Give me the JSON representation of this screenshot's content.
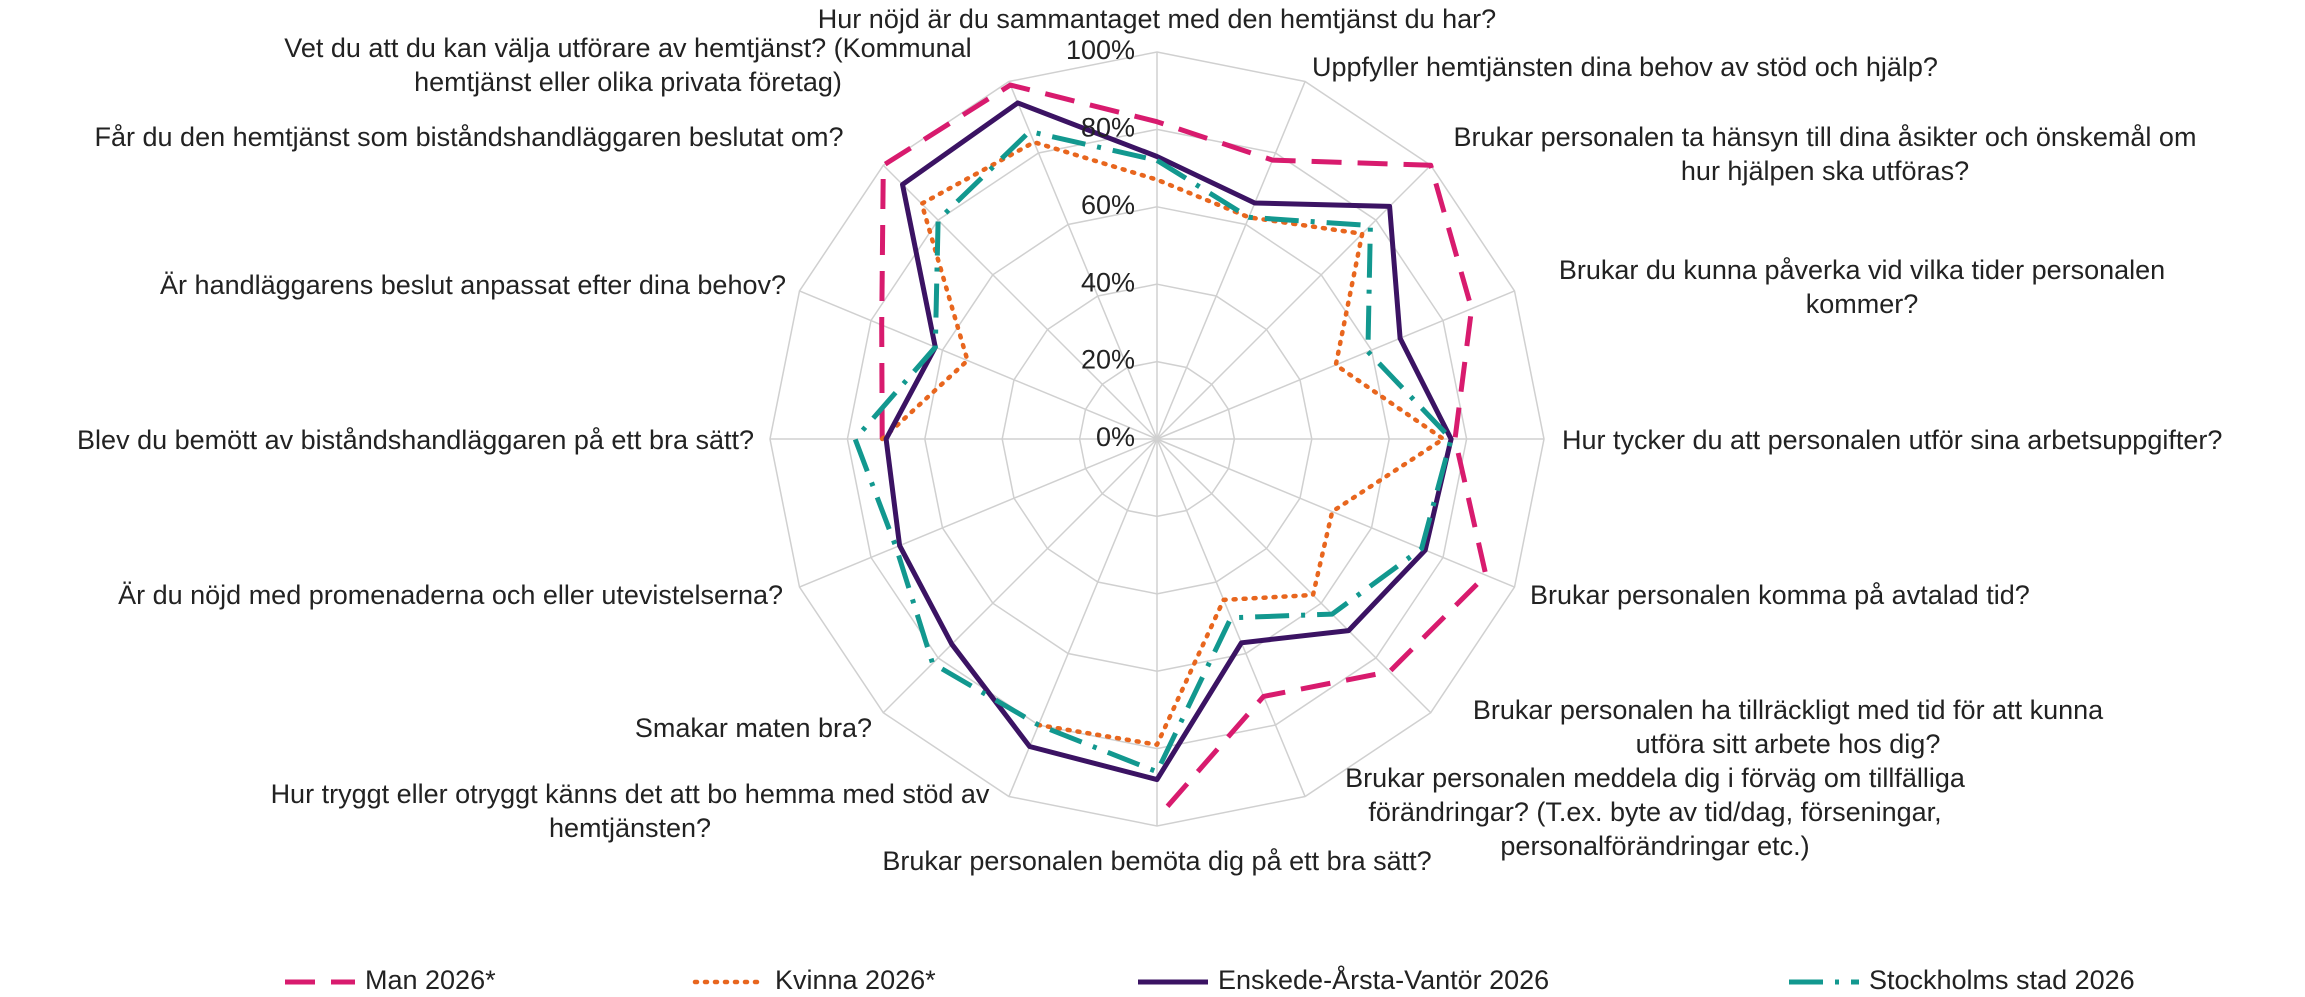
{
  "chart_data": {
    "type": "radar",
    "categories": [
      "Hur nöjd är du sammantaget med den hemtjänst du har?",
      "Uppfyller hemtjänsten dina behov av stöd och hjälp?",
      "Brukar personalen ta hänsyn till dina åsikter och önskemål om hur hjälpen ska utföras?",
      "Brukar du kunna påverka vid vilka tider personalen kommer?",
      "Hur tycker du att personalen utför sina  arbetsuppgifter?",
      "Brukar personalen komma på avtalad tid?",
      "Brukar personalen ha tillräckligt med tid för att kunna utföra sitt arbete hos dig?",
      "Brukar personalen meddela dig i förväg om tillfälliga förändringar? (T.ex. byte av tid/dag, förseningar, personalförändringar etc.)",
      "Brukar personalen bemöta dig på ett bra sätt?",
      "Hur tryggt eller otryggt känns det att bo hemma med stöd av hemtjänsten?",
      "Smakar maten bra?",
      "Är du nöjd med promenaderna och eller utevistelserna?",
      "Blev du bemött av biståndshandläggaren på ett bra sätt?",
      "Är handläggarens beslut anpassat efter dina behov?",
      "Får du den hemtjänst som biståndshandläggaren beslutat om?",
      "Vet du att du kan välja utförare av hemtjänst? (Kommunal hemtjänst eller olika privata företag)"
    ],
    "series": [
      {
        "name": "Man 2026*",
        "color": "#d81b6e",
        "values": [
          82,
          78,
          100,
          88,
          77,
          92,
          85,
          72,
          98,
          null,
          null,
          null,
          71,
          77,
          100,
          99
        ]
      },
      {
        "name": "Kvinna 2026*",
        "color": "#e8661e",
        "values": [
          67,
          62,
          75,
          50,
          74,
          49,
          57,
          45,
          79,
          80,
          null,
          null,
          71,
          53,
          86,
          83
        ]
      },
      {
        "name": "Enskede-Årsta-Vantör 2026",
        "color": "#3b1363",
        "values": [
          73,
          66,
          85,
          68,
          76,
          75,
          70,
          57,
          88,
          86,
          75,
          72,
          70,
          62,
          93,
          94
        ]
      },
      {
        "name": "Stockholms stad 2026",
        "color": "#12988f",
        "values": [
          72,
          62,
          78,
          59,
          76,
          74,
          64,
          50,
          86,
          80,
          82,
          73,
          78,
          62,
          80,
          86
        ]
      }
    ],
    "ylim": [
      0,
      100
    ],
    "yticks": [
      {
        "value": 0,
        "label": "0%"
      },
      {
        "value": 20,
        "label": "20%"
      },
      {
        "value": 40,
        "label": "40%"
      },
      {
        "value": 60,
        "label": "60%"
      },
      {
        "value": 80,
        "label": "80%"
      },
      {
        "value": 100,
        "label": "100%"
      }
    ],
    "grid": true,
    "legend": "bottom"
  }
}
